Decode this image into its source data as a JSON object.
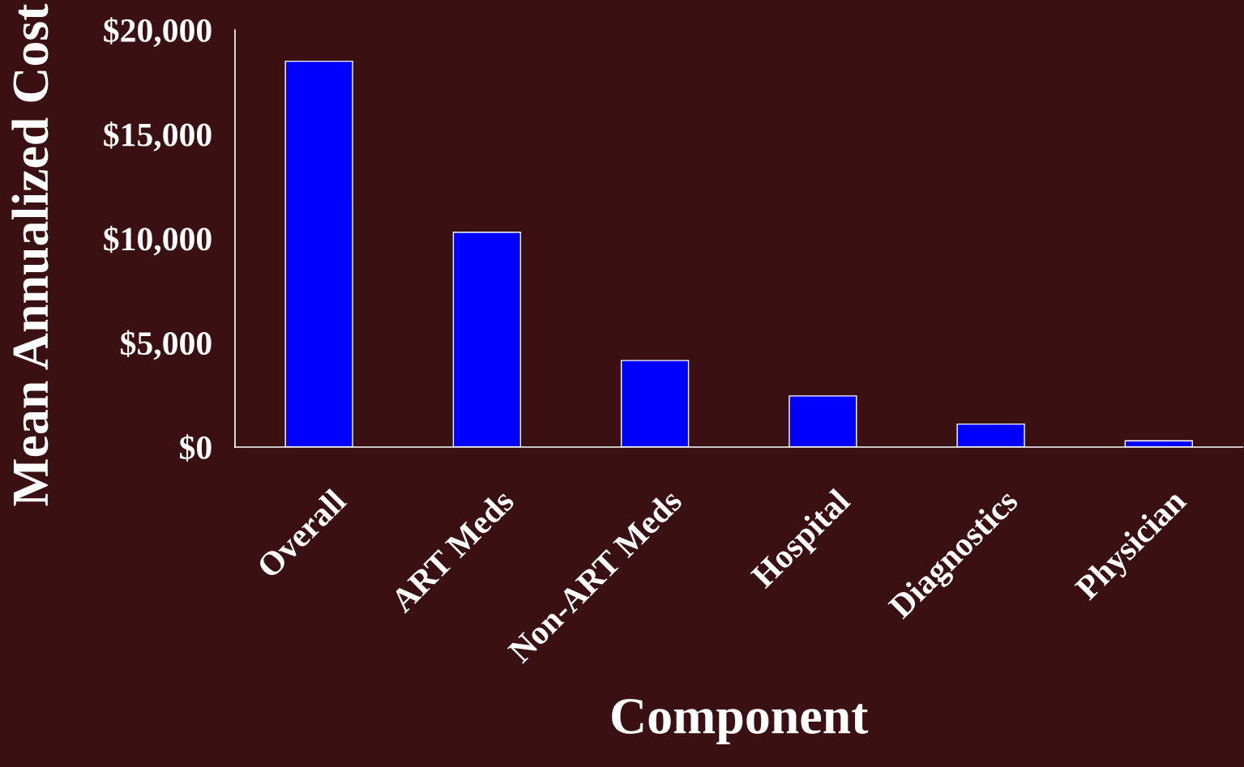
{
  "chart_data": {
    "type": "bar",
    "xlabel": "Component",
    "ylabel": "Mean Annualized Cost",
    "categories": [
      "Overall",
      "ART Meds",
      "Non-ART Meds",
      "Hospital",
      "Diagnostics",
      "Physician"
    ],
    "values": [
      18500,
      10300,
      4150,
      2450,
      1100,
      300
    ],
    "color": "#0000ff",
    "ylim": [
      0,
      20000
    ],
    "yticks": [
      {
        "value": 0,
        "label": "$0"
      },
      {
        "value": 5000,
        "label": "$5,000"
      },
      {
        "value": 10000,
        "label": "$10,000"
      },
      {
        "value": 15000,
        "label": "$15,000"
      },
      {
        "value": 20000,
        "label": "$20,000"
      }
    ],
    "grid": false,
    "legend": false
  }
}
